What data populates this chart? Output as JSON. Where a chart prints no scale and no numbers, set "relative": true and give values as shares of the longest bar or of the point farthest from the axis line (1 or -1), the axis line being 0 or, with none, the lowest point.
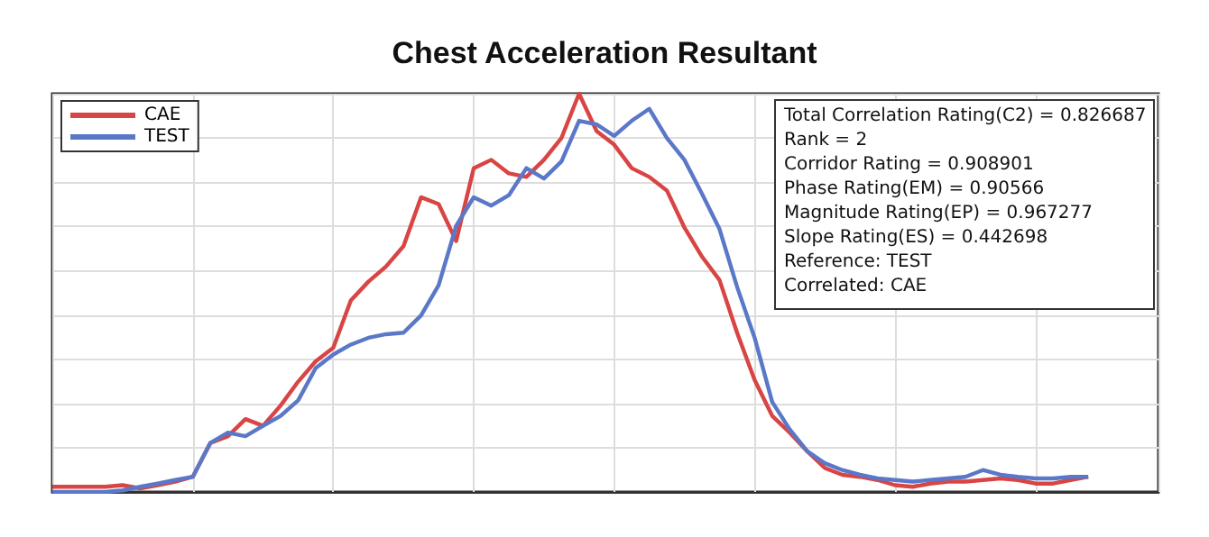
{
  "chart_data": {
    "type": "line",
    "title": "Chest Acceleration Resultant",
    "relative": true,
    "grid": true,
    "legend": "top left",
    "marker": "none",
    "line_style": "solid",
    "categories": [
      null,
      null,
      null,
      null,
      null,
      null,
      null,
      null,
      null,
      null,
      null,
      null,
      null,
      null,
      null,
      null,
      null,
      null,
      null,
      null,
      null,
      null,
      null,
      null,
      null,
      null,
      null,
      null,
      null,
      null,
      null,
      null,
      null,
      null,
      null,
      null,
      null,
      null,
      null,
      null,
      null,
      null,
      null,
      null,
      null,
      null,
      null,
      null,
      null,
      null,
      null,
      null,
      null,
      null,
      null,
      null,
      null,
      null,
      null,
      null,
      null,
      null,
      null,
      null
    ],
    "series": [
      {
        "name": "CAE",
        "color": "#d94444",
        "values": [
          0.013,
          0.013,
          0.013,
          0.013,
          0.017,
          0.009,
          0.017,
          0.026,
          0.038,
          0.123,
          0.14,
          0.183,
          0.166,
          0.217,
          0.277,
          0.328,
          0.362,
          0.481,
          0.528,
          0.566,
          0.617,
          0.74,
          0.723,
          0.63,
          0.813,
          0.834,
          0.8,
          0.791,
          0.834,
          0.889,
          1.0,
          0.906,
          0.872,
          0.813,
          0.791,
          0.757,
          0.664,
          0.591,
          0.532,
          0.4,
          0.281,
          0.191,
          0.149,
          0.102,
          0.06,
          0.043,
          0.038,
          0.03,
          0.017,
          0.013,
          0.021,
          0.026,
          0.026,
          0.03,
          0.034,
          0.03,
          0.021,
          0.021,
          0.03,
          0.038,
          null,
          null,
          null,
          null
        ]
      },
      {
        "name": "TEST",
        "color": "#5b78c8",
        "values": [
          0.0,
          0.0,
          0.0,
          0.0,
          0.004,
          0.013,
          0.021,
          0.03,
          0.038,
          0.123,
          0.149,
          0.14,
          0.166,
          0.191,
          0.23,
          0.311,
          0.345,
          0.37,
          0.387,
          0.396,
          0.4,
          0.443,
          0.519,
          0.668,
          0.74,
          0.719,
          0.745,
          0.813,
          0.787,
          0.83,
          0.932,
          0.923,
          0.894,
          0.932,
          0.962,
          0.889,
          0.834,
          0.749,
          0.66,
          0.515,
          0.387,
          0.226,
          0.157,
          0.102,
          0.072,
          0.055,
          0.043,
          0.034,
          0.03,
          0.026,
          0.03,
          0.034,
          0.038,
          0.055,
          0.043,
          0.038,
          0.034,
          0.034,
          0.038,
          0.038,
          null,
          null,
          null,
          null
        ]
      }
    ],
    "annotations": [
      "Total Correlation Rating(C2) = 0.826687",
      "Rank = 2",
      "Corridor Rating = 0.908901",
      "Phase Rating(EM) = 0.90566",
      "Magnitude Rating(EP) = 0.967277",
      "Slope Rating(ES) = 0.442698",
      "Reference: TEST",
      "Correlated: CAE"
    ]
  }
}
